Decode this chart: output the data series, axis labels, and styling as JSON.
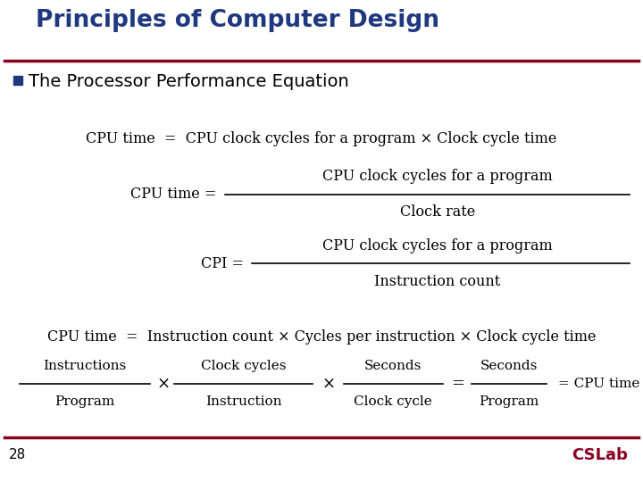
{
  "title": "Principles of Computer Design",
  "subtitle": "The Processor Performance Equation",
  "slide_number": "28",
  "title_color": "#1F3880",
  "subtitle_color": "#000000",
  "bullet_color": "#1F3880",
  "separator_color": "#8B0020",
  "bg_color": "#FFFFFF",
  "eq1": "CPU time  =  CPU clock cycles for a program × Clock cycle time",
  "eq2_left": "CPU time = ",
  "eq2_num": "CPU clock cycles for a program",
  "eq2_den": "Clock rate",
  "eq3_left": "CPI = ",
  "eq3_num": "CPU clock cycles for a program",
  "eq3_den": "Instruction count",
  "eq4": "CPU time  =  Instruction count × Cycles per instruction × Clock cycle time",
  "eq5_n1": "Instructions",
  "eq5_d1": "Program",
  "eq5_n2": "Clock cycles",
  "eq5_d2": "Instruction",
  "eq5_n3": "Seconds",
  "eq5_d3": "Clock cycle",
  "eq5_n4": "Seconds",
  "eq5_d4": "Program",
  "eq5_end": "= CPU time"
}
